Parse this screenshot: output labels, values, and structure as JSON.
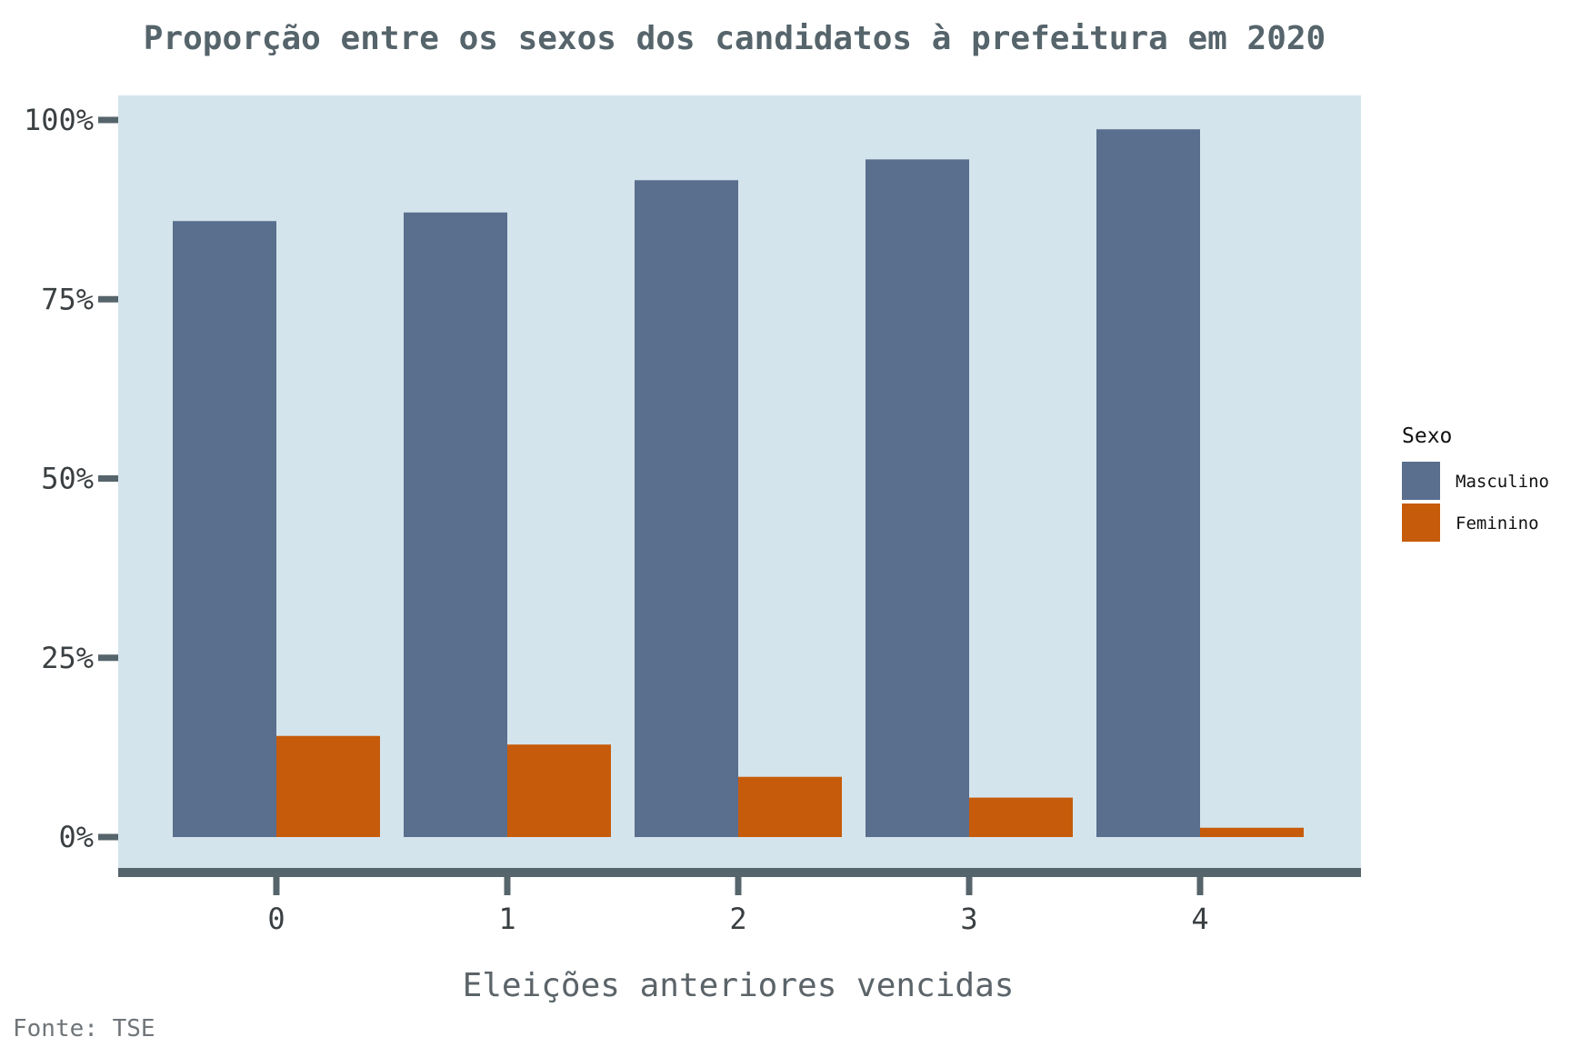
{
  "chart_data": {
    "type": "bar",
    "title": "Proporção entre os sexos dos candidatos à prefeitura em 2020",
    "xlabel": "Eleições anteriores vencidas",
    "ylabel": "",
    "caption": "Fonte: TSE",
    "categories": [
      "0",
      "1",
      "2",
      "3",
      "4"
    ],
    "series": [
      {
        "name": "Masculino",
        "color": "#5a6e8e",
        "values": [
          85.9,
          87.1,
          91.6,
          94.5,
          98.7
        ]
      },
      {
        "name": "Feminino",
        "color": "#c65c0b",
        "values": [
          14.1,
          12.9,
          8.4,
          5.5,
          1.3
        ]
      }
    ],
    "ylim": [
      0,
      100
    ],
    "yticks": [
      0,
      25,
      50,
      75,
      100
    ],
    "ytick_labels": [
      "0%",
      "25%",
      "50%",
      "75%",
      "100%"
    ],
    "legend": {
      "title": "Sexo",
      "position": "right"
    },
    "panel_background": "#d4e4ec",
    "axis_color": "#56646b",
    "grid": false
  }
}
